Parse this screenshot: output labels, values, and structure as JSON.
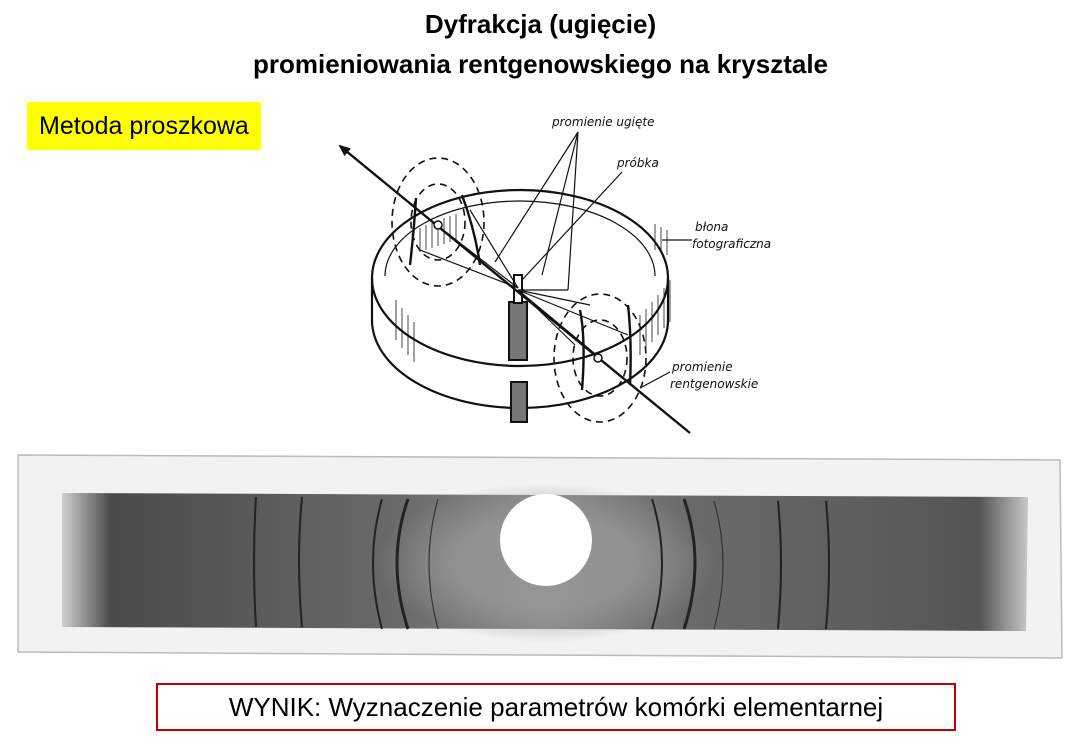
{
  "title": {
    "line1": "Dyfrakcja (ugięcie)",
    "line2": "promieniowania rentgenowskiego na krysztale"
  },
  "method_label": "Metoda proszkowa",
  "diagram": {
    "label_diffracted": "promienie ugięte",
    "label_sample": "próbka",
    "label_film_1": "błona",
    "label_film_2": "fotograficzna",
    "label_xray_1": "promienie",
    "label_xray_2": "rentgenowskie"
  },
  "result": "WYNIK: Wyznaczenie parametrów komórki elementarnej"
}
